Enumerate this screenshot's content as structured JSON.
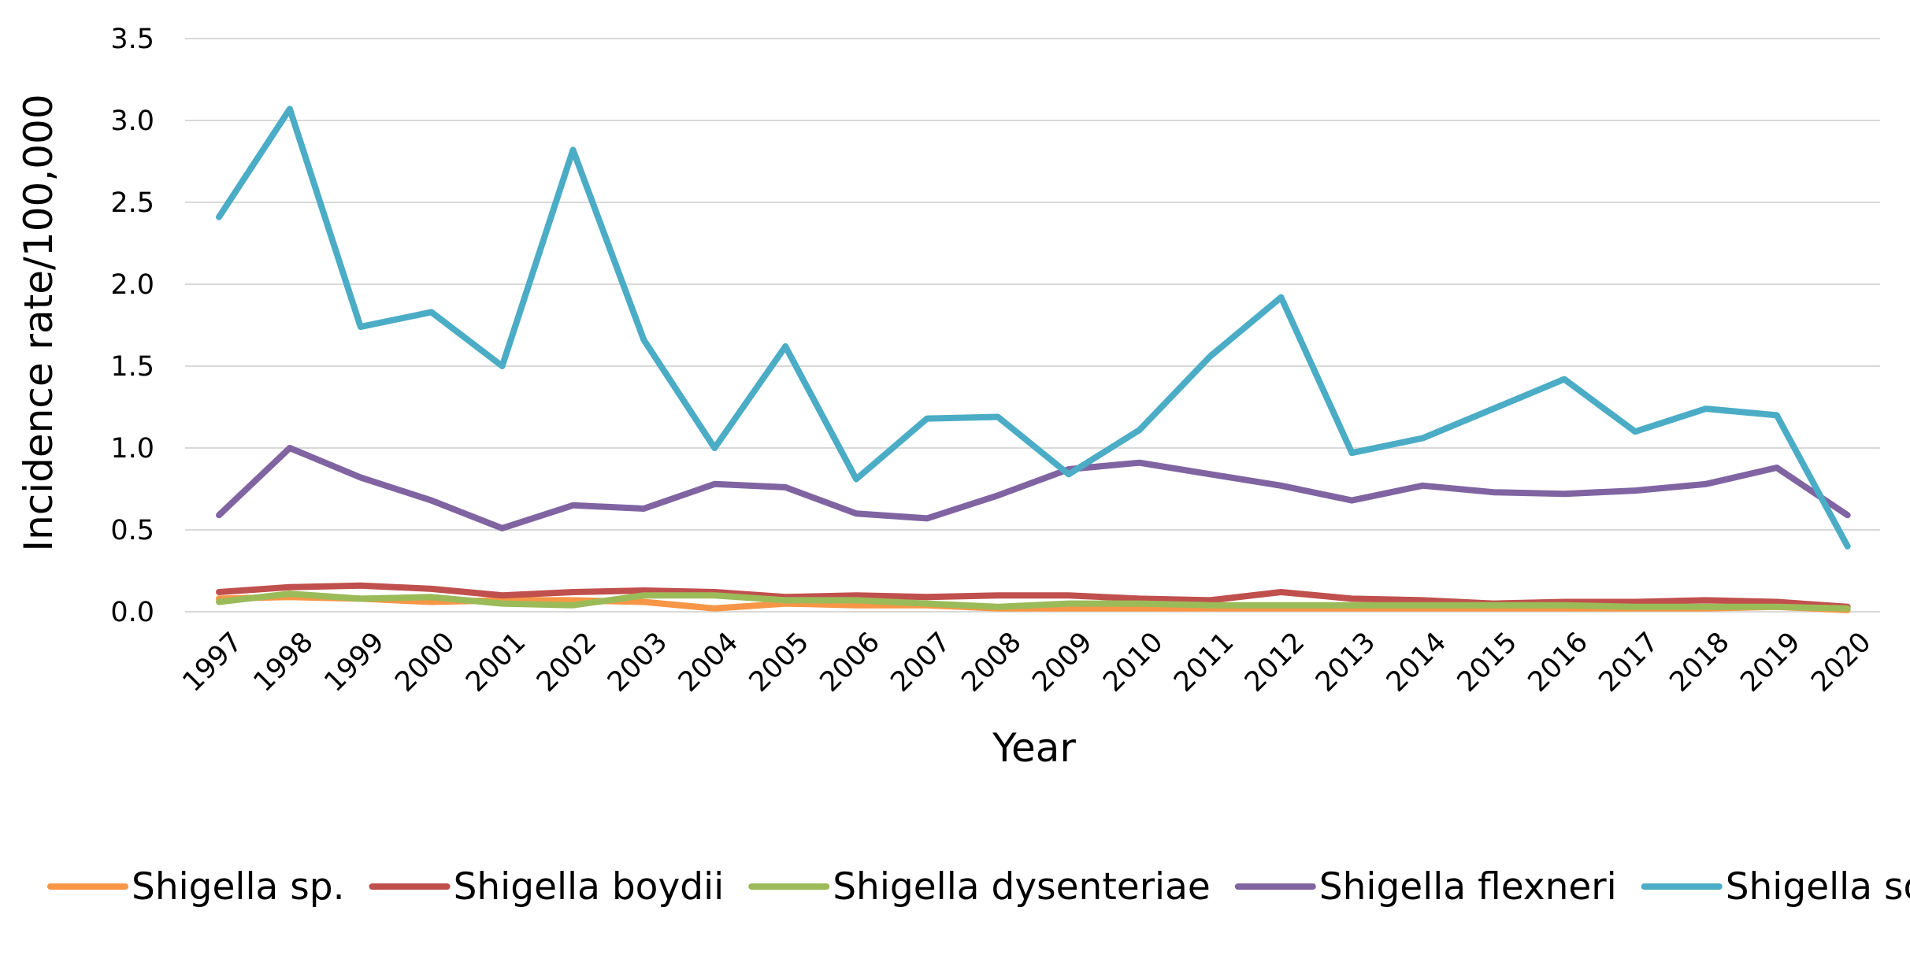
{
  "chart_data": {
    "type": "line",
    "title": "",
    "xlabel": "Year",
    "ylabel": "Incidence rate/100,000",
    "categories": [
      "1997",
      "1998",
      "1999",
      "2000",
      "2001",
      "2002",
      "2003",
      "2004",
      "2005",
      "2006",
      "2007",
      "2008",
      "2009",
      "2010",
      "2011",
      "2012",
      "2013",
      "2014",
      "2015",
      "2016",
      "2017",
      "2018",
      "2019",
      "2020"
    ],
    "ylim": [
      0,
      3.5
    ],
    "yticks": [
      "0.0",
      "0.5",
      "1.0",
      "1.5",
      "2.0",
      "2.5",
      "3.0",
      "3.5"
    ],
    "grid": "horizontal",
    "legend_position": "bottom",
    "series": [
      {
        "name": "Shigella sp.",
        "color": "#F79646",
        "values": [
          0.08,
          0.09,
          0.08,
          0.06,
          0.07,
          0.07,
          0.06,
          0.02,
          0.05,
          0.04,
          0.04,
          0.02,
          0.02,
          0.02,
          0.02,
          0.02,
          0.02,
          0.02,
          0.02,
          0.02,
          0.02,
          0.02,
          0.03,
          0.01
        ]
      },
      {
        "name": "Shigella boydii",
        "color": "#C0504D",
        "values": [
          0.12,
          0.15,
          0.16,
          0.14,
          0.1,
          0.12,
          0.13,
          0.12,
          0.09,
          0.1,
          0.09,
          0.1,
          0.1,
          0.08,
          0.07,
          0.12,
          0.08,
          0.07,
          0.05,
          0.06,
          0.06,
          0.07,
          0.06,
          0.03
        ]
      },
      {
        "name": "Shigella dysenteriae",
        "color": "#9BBB59",
        "values": [
          0.06,
          0.11,
          0.08,
          0.09,
          0.05,
          0.04,
          0.1,
          0.1,
          0.07,
          0.07,
          0.05,
          0.03,
          0.05,
          0.05,
          0.04,
          0.04,
          0.04,
          0.04,
          0.04,
          0.04,
          0.03,
          0.03,
          0.03,
          0.02
        ]
      },
      {
        "name": "Shigella flexneri",
        "color": "#8064A2",
        "values": [
          0.59,
          1.0,
          0.82,
          0.68,
          0.51,
          0.65,
          0.63,
          0.78,
          0.76,
          0.6,
          0.57,
          0.71,
          0.87,
          0.91,
          0.84,
          0.77,
          0.68,
          0.77,
          0.73,
          0.72,
          0.74,
          0.78,
          0.88,
          0.59
        ]
      },
      {
        "name": "Shigella sonnei",
        "color": "#4BACC6",
        "values": [
          2.41,
          3.07,
          1.74,
          1.83,
          1.5,
          2.82,
          1.66,
          1.0,
          1.62,
          0.81,
          1.18,
          1.19,
          0.84,
          1.11,
          1.56,
          1.92,
          0.97,
          1.06,
          1.24,
          1.42,
          1.1,
          1.24,
          1.2,
          0.4
        ]
      }
    ]
  }
}
